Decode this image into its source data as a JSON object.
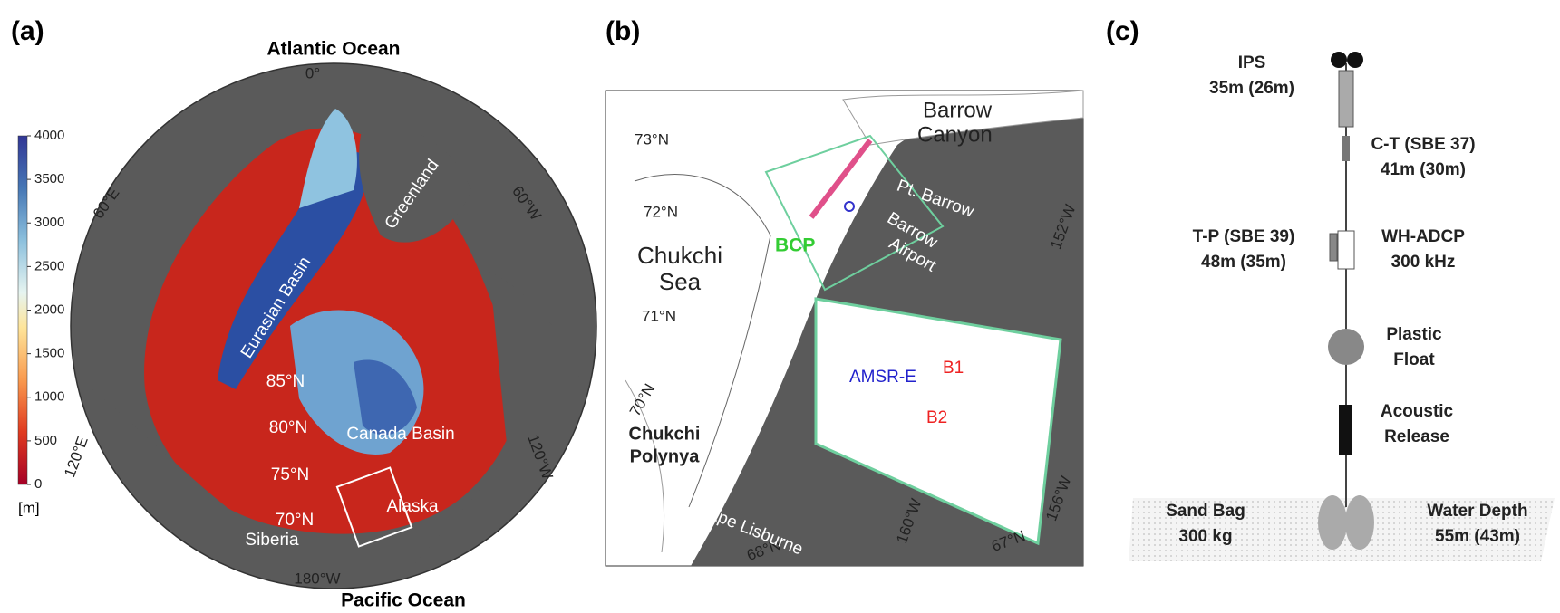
{
  "panel_a": {
    "label": "(a)",
    "top": "Atlantic Ocean",
    "bottom": "Pacific Ocean",
    "colorbar": {
      "ticks": [
        0,
        500,
        1000,
        1500,
        2000,
        2500,
        3000,
        3500,
        4000
      ],
      "unit": "[m]"
    },
    "longitudes": [
      "0°",
      "60°E",
      "60°W",
      "120°E",
      "120°W",
      "180°W"
    ],
    "latitudes": [
      "85°N",
      "80°N",
      "75°N",
      "70°N"
    ],
    "places": [
      "Eurasian Basin",
      "Greenland",
      "Canada Basin",
      "Alaska",
      "Siberia"
    ]
  },
  "panel_b": {
    "label": "(b)",
    "latitudes": [
      "73°N",
      "72°N",
      "71°N",
      "70°N",
      "68°N",
      "67°N"
    ],
    "longitudes": [
      "152°W",
      "156°W",
      "160°W"
    ],
    "places": [
      "Barrow",
      "Canyon",
      "Pt. Barrow",
      "Barrow",
      "Airport",
      "BCP",
      "Chukchi",
      "Sea",
      "Chukchi",
      "Polynya",
      "Cape Lisburne"
    ],
    "inset": [
      "AMSR-E",
      "B1",
      "B2"
    ]
  },
  "panel_c": {
    "label": "(c)",
    "instruments": [
      {
        "name": "IPS",
        "detail": "35m (26m)"
      },
      {
        "name": "C-T (SBE 37)",
        "detail": "41m (30m)"
      },
      {
        "name": "T-P (SBE 39)",
        "detail": "48m (35m)"
      },
      {
        "name": "WH-ADCP",
        "detail": "300 kHz"
      },
      {
        "name": "Plastic",
        "detail": "Float"
      },
      {
        "name": "Acoustic",
        "detail": "Release"
      },
      {
        "name": "Sand Bag",
        "detail": "300 kg"
      },
      {
        "name": "Water Depth",
        "detail": "55m (43m)"
      }
    ]
  }
}
